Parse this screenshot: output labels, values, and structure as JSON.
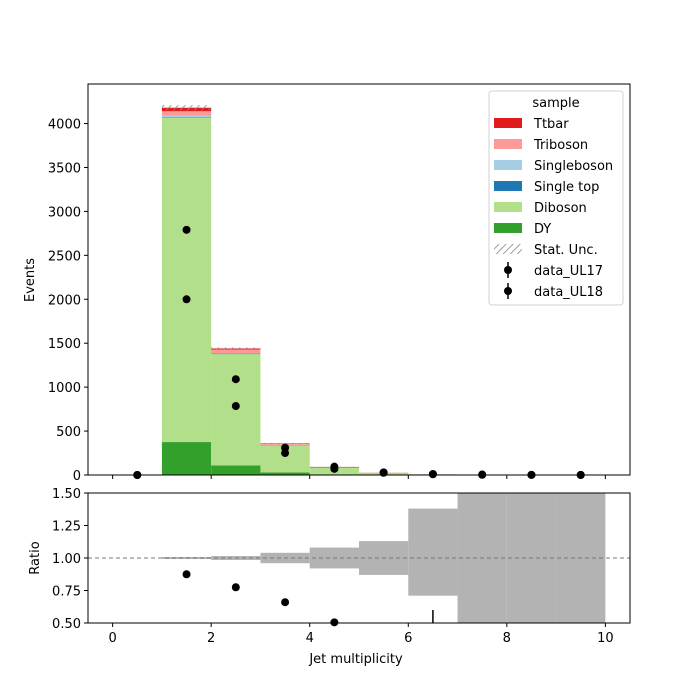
{
  "chart_data": [
    {
      "type": "bar",
      "stacked": true,
      "bin_edges": [
        0,
        1,
        2,
        3,
        4,
        5,
        6,
        7,
        8,
        9,
        10
      ],
      "xlim": [
        -0.5,
        10.5
      ],
      "ylim": [
        0,
        4450
      ],
      "xlabel": "",
      "ylabel": "Events",
      "xticks": [
        0,
        2,
        4,
        6,
        8,
        10
      ],
      "yticks": [
        0,
        500,
        1000,
        1500,
        2000,
        2500,
        3000,
        3500,
        4000
      ],
      "grid": false,
      "legend_title": "sample",
      "legend_position": "top-right",
      "series": [
        {
          "name": "DY",
          "color": "#33a02c",
          "values": [
            0,
            375,
            110,
            30,
            8,
            3,
            1,
            0,
            0,
            0
          ]
        },
        {
          "name": "Diboson",
          "color": "#b2df8a",
          "values": [
            0,
            3690,
            1270,
            310,
            80,
            22,
            6,
            0,
            0,
            0
          ]
        },
        {
          "name": "Single top",
          "color": "#1f78b4",
          "values": [
            0,
            5,
            2,
            1,
            0,
            0,
            0,
            0,
            0,
            0
          ]
        },
        {
          "name": "Singleboson",
          "color": "#a6cee3",
          "values": [
            0,
            20,
            6,
            2,
            0,
            0,
            0,
            0,
            0,
            0
          ]
        },
        {
          "name": "Triboson",
          "color": "#fb9a99",
          "values": [
            0,
            50,
            40,
            12,
            3,
            1,
            0,
            0,
            0,
            0
          ]
        },
        {
          "name": "Ttbar",
          "color": "#e31a1c",
          "values": [
            0,
            40,
            12,
            5,
            1,
            0,
            0,
            0,
            0,
            0
          ]
        }
      ],
      "stat_unc": {
        "name": "Stat. Unc.",
        "half_width": [
          0,
          30,
          12,
          5,
          2,
          1,
          1,
          0,
          0,
          0
        ]
      },
      "data_series": [
        {
          "name": "data_UL17",
          "x": [
            0.5,
            1.5,
            2.5,
            3.5,
            4.5,
            5.5,
            6.5,
            7.5,
            8.5,
            9.5
          ],
          "y": [
            0,
            2790,
            1090,
            310,
            95,
            30,
            12,
            5,
            2,
            1
          ]
        },
        {
          "name": "data_UL18",
          "x": [
            0.5,
            1.5,
            2.5,
            3.5,
            4.5,
            5.5,
            6.5,
            7.5,
            8.5,
            9.5
          ],
          "y": [
            0,
            2000,
            785,
            250,
            70,
            25,
            8,
            3,
            1,
            0
          ]
        }
      ]
    },
    {
      "type": "scatter",
      "xlabel": "Jet multiplicity",
      "ylabel": "Ratio",
      "xlim": [
        -0.5,
        10.5
      ],
      "ylim": [
        0.5,
        1.5
      ],
      "xticks": [
        0,
        2,
        4,
        6,
        8,
        10
      ],
      "yticks": [
        0.5,
        0.75,
        1.0,
        1.25,
        1.5
      ],
      "ytick_labels": [
        "0.50",
        "0.75",
        "1.00",
        "1.25",
        "1.50"
      ],
      "reference_line": 1.0,
      "unc_band": {
        "bin_edges": [
          1,
          2,
          3,
          4,
          5,
          6,
          7,
          8,
          9,
          10
        ],
        "low": [
          0.992,
          0.985,
          0.96,
          0.92,
          0.87,
          0.71,
          0.5,
          0.5,
          0.5
        ],
        "high": [
          1.008,
          1.015,
          1.04,
          1.08,
          1.13,
          1.38,
          1.5,
          1.5,
          1.5
        ]
      },
      "points": {
        "x": [
          1.5,
          2.5,
          3.5,
          4.5
        ],
        "y": [
          0.875,
          0.775,
          0.66,
          0.505
        ]
      },
      "error_bars": [
        {
          "x": 6.5,
          "low": 0.5,
          "high": 0.6
        }
      ]
    }
  ]
}
